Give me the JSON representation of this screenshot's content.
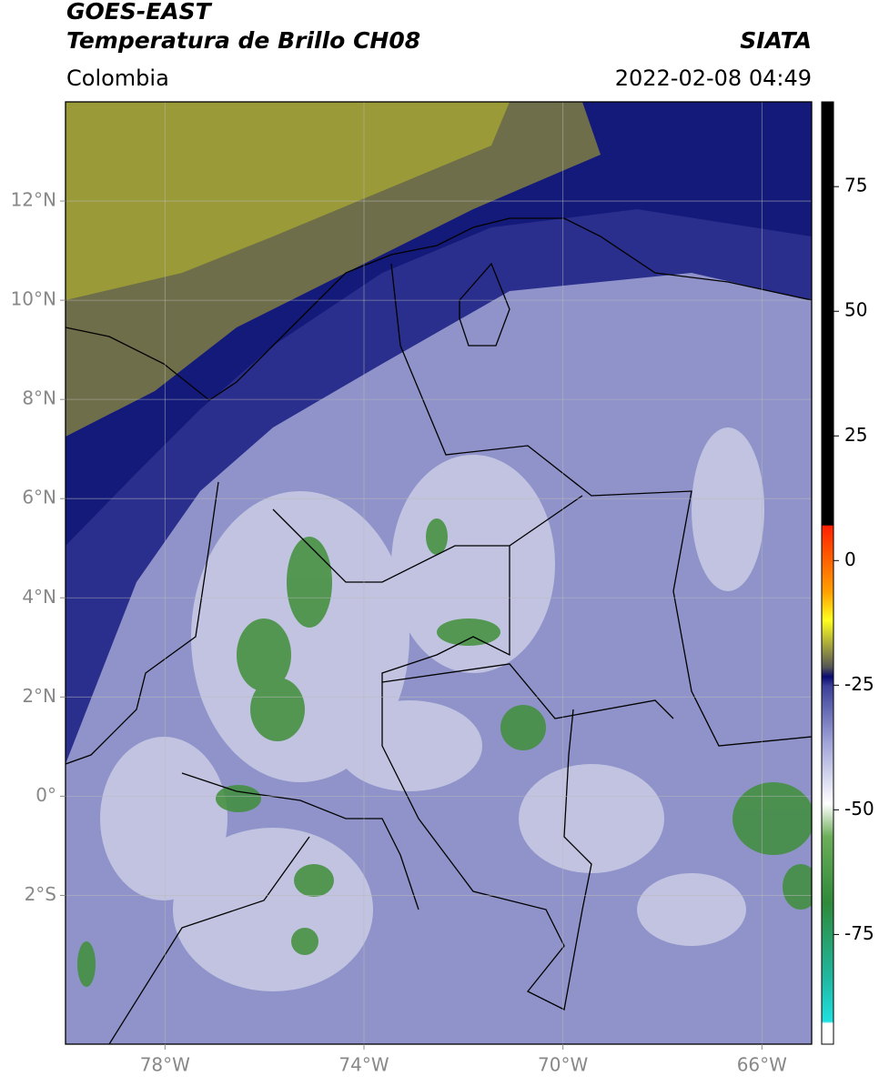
{
  "chart_data": {
    "type": "map",
    "title": "GOES-EAST",
    "subtitle": "Temperatura de Brillo CH08",
    "source": "SIATA",
    "region": "Colombia",
    "datetime": "2022-02-08 04:49",
    "xlim": [
      -80,
      -65
    ],
    "ylim": [
      -5,
      14
    ],
    "xticks": [
      {
        "value": -78,
        "label": "78°W"
      },
      {
        "value": -74,
        "label": "74°W"
      },
      {
        "value": -70,
        "label": "70°W"
      },
      {
        "value": -66,
        "label": "66°W"
      }
    ],
    "yticks": [
      {
        "value": 12,
        "label": "12°N"
      },
      {
        "value": 10,
        "label": "10°N"
      },
      {
        "value": 8,
        "label": "8°N"
      },
      {
        "value": 6,
        "label": "6°N"
      },
      {
        "value": 4,
        "label": "4°N"
      },
      {
        "value": 2,
        "label": "2°N"
      },
      {
        "value": 0,
        "label": "0°"
      },
      {
        "value": -2,
        "label": "2°S"
      }
    ],
    "grid": true,
    "colorbar": {
      "lim": [
        -97,
        92
      ],
      "ticks": [
        75,
        50,
        25,
        0,
        -25,
        -50,
        -75
      ]
    }
  }
}
